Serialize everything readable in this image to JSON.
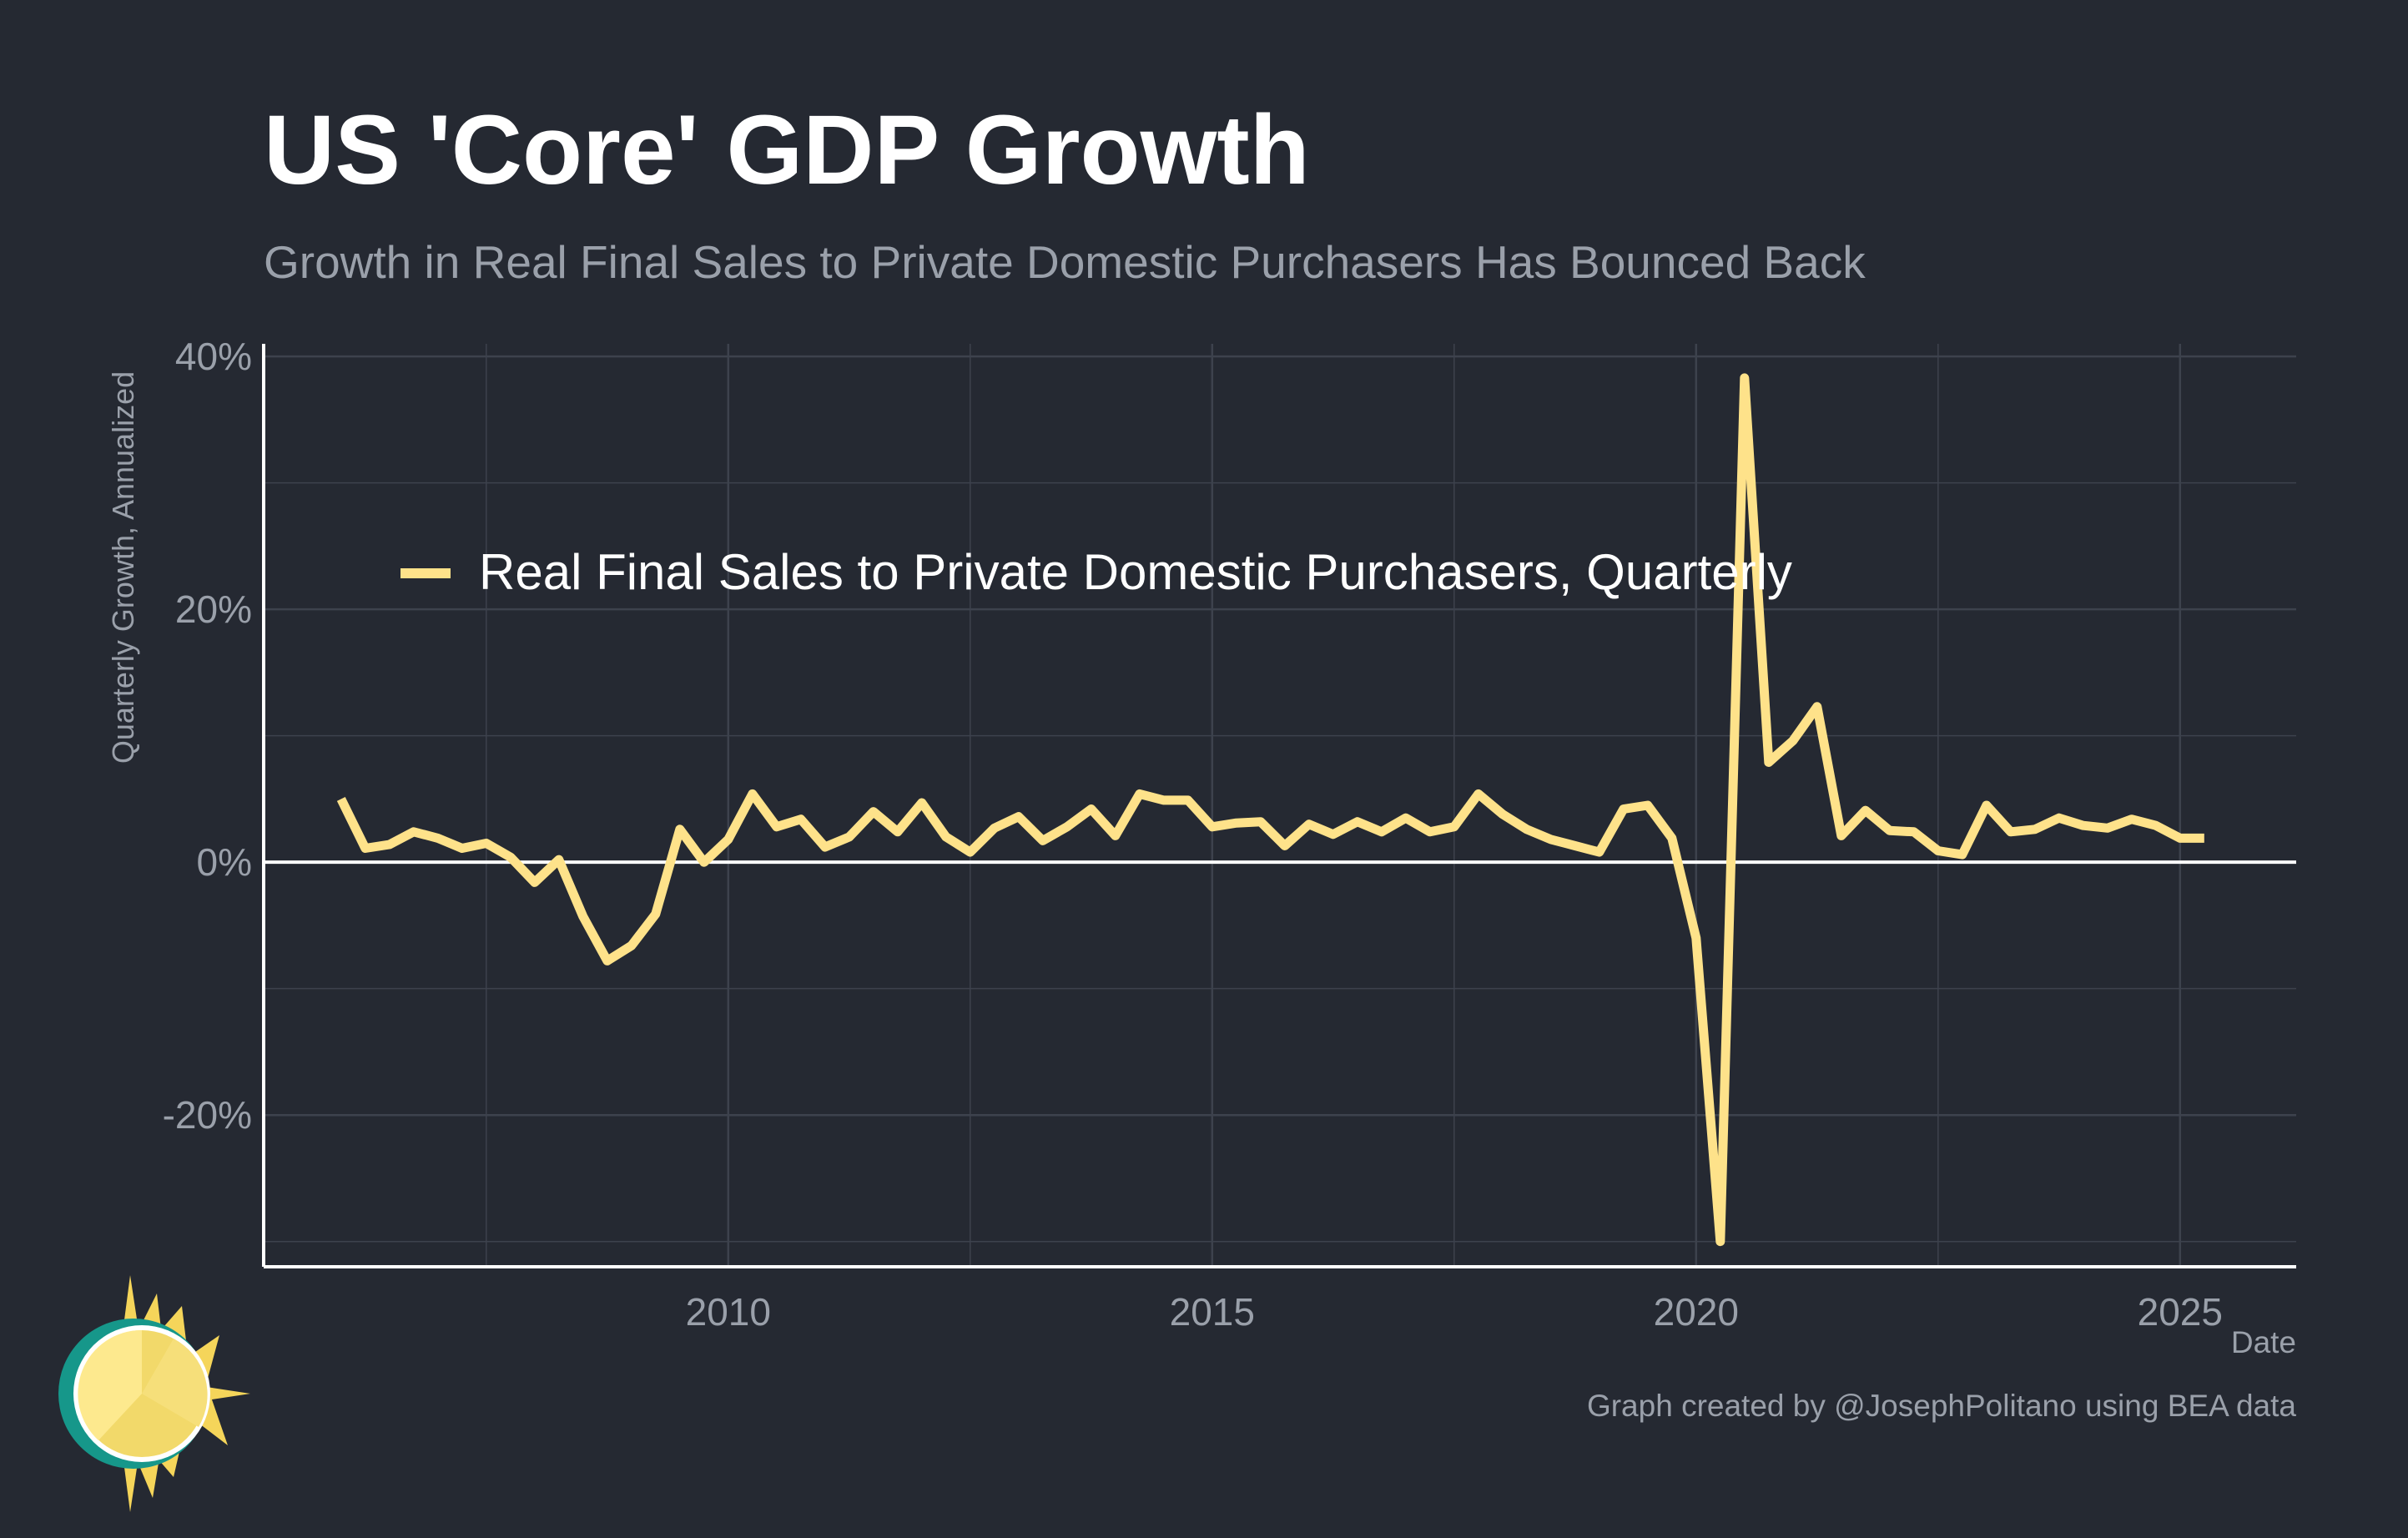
{
  "title": "US 'Core' GDP Growth",
  "subtitle": "Growth in Real Final Sales to Private Domestic Purchasers Has Bounced Back",
  "credit": "Graph created by @JosephPolitano using BEA data",
  "colors": {
    "background": "#252932",
    "series": "#fee28a",
    "grid": "#3d424d",
    "axis": "#ffffff",
    "muted_text": "#9aa0aa"
  },
  "chart_data": {
    "type": "line",
    "xlabel": "Date",
    "ylabel": "Quarterly Growth, Annualized",
    "xlim": [
      2005.2,
      2026.2
    ],
    "ylim": [
      -32,
      41
    ],
    "x_ticks": [
      2010,
      2015,
      2020,
      2025
    ],
    "x_tick_labels": [
      "2010",
      "2015",
      "2020",
      "2025"
    ],
    "y_ticks": [
      -20,
      0,
      20,
      40
    ],
    "y_tick_labels": [
      "-20%",
      "0%",
      "20%",
      "40%"
    ],
    "grid": true,
    "zero_line": true,
    "legend_position": "upper-left inside plot",
    "series": [
      {
        "name": "Real Final Sales to Private Domestic Purchasers, Quarterly",
        "color": "#fee28a",
        "start_year": 2006.0,
        "step_years": 0.25,
        "values": [
          5.0,
          1.1,
          1.4,
          2.4,
          1.9,
          1.1,
          1.5,
          0.4,
          -1.6,
          0.2,
          -4.3,
          -7.8,
          -6.6,
          -4.1,
          2.6,
          0.0,
          1.8,
          5.4,
          2.8,
          3.4,
          1.2,
          2.0,
          4.0,
          2.4,
          4.7,
          2.0,
          0.8,
          2.7,
          3.6,
          1.7,
          2.8,
          4.2,
          2.1,
          5.4,
          4.9,
          4.9,
          2.8,
          3.1,
          3.2,
          1.3,
          3.0,
          2.2,
          3.2,
          2.4,
          3.5,
          2.4,
          2.8,
          5.4,
          3.8,
          2.6,
          1.8,
          1.3,
          0.8,
          4.2,
          4.5,
          1.9,
          -6.0,
          -30.0,
          38.3,
          7.9,
          9.6,
          12.3,
          2.1,
          4.1,
          2.5,
          2.4,
          0.9,
          0.6,
          4.5,
          2.4,
          2.6,
          3.5,
          2.9,
          2.7,
          3.4,
          2.9,
          1.9,
          1.9
        ]
      }
    ]
  }
}
